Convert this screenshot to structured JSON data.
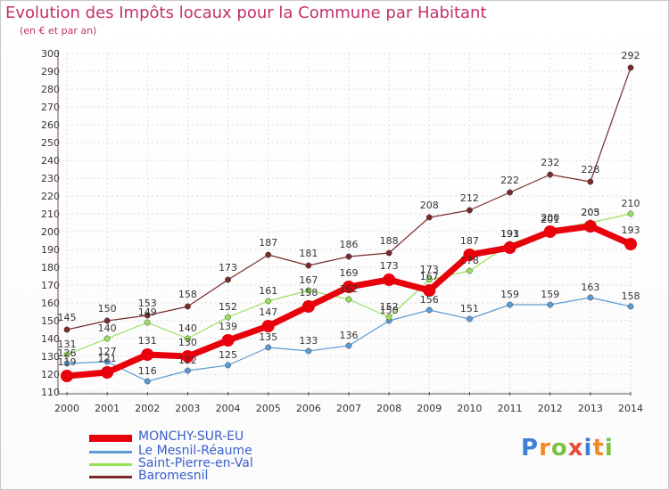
{
  "chart_data": {
    "type": "line",
    "title": "Evolution des Impôts locaux pour la Commune par Habitant",
    "subtitle": "(en € et par an)",
    "xlabel": "",
    "ylabel": "",
    "categories": [
      "2000",
      "2001",
      "2002",
      "2003",
      "2004",
      "2005",
      "2006",
      "2007",
      "2008",
      "2009",
      "2010",
      "2011",
      "2012",
      "2013",
      "2014"
    ],
    "ylim": [
      110,
      300
    ],
    "yticks": [
      110,
      120,
      130,
      140,
      150,
      160,
      170,
      180,
      190,
      200,
      210,
      220,
      230,
      240,
      250,
      260,
      270,
      280,
      290,
      300
    ],
    "series": [
      {
        "name": "MONCHY-SUR-EU",
        "color": "#e8000b",
        "width": 7,
        "values": [
          119,
          121,
          131,
          130,
          139,
          147,
          158,
          169,
          173,
          167,
          187,
          191,
          200,
          203,
          193
        ]
      },
      {
        "name": "Le Mesnil-Réaume",
        "color": "#5b9bd5",
        "width": 1.2,
        "values": [
          126,
          127,
          116,
          122,
          125,
          135,
          133,
          136,
          150,
          156,
          151,
          159,
          159,
          163,
          158
        ]
      },
      {
        "name": "Saint-Pierre-en-Val",
        "color": "#98e05a",
        "width": 1.2,
        "values": [
          131,
          140,
          149,
          140,
          152,
          161,
          167,
          162,
          152,
          173,
          178,
          193,
          201,
          205,
          210
        ]
      },
      {
        "name": "Baromesnil",
        "color": "#7a2a2a",
        "width": 1.2,
        "values": [
          145,
          150,
          153,
          158,
          173,
          187,
          181,
          186,
          188,
          208,
          212,
          222,
          232,
          228,
          292
        ]
      }
    ],
    "legend_position": "bottom-left"
  },
  "logo": {
    "letters": [
      "P",
      "r",
      "o",
      "x",
      "i",
      "t",
      "i"
    ],
    "colors": [
      "#3d7fd6",
      "#f08a24",
      "#7cc242",
      "#e84b3a",
      "#3d7fd6",
      "#f08a24",
      "#7cc242"
    ]
  }
}
